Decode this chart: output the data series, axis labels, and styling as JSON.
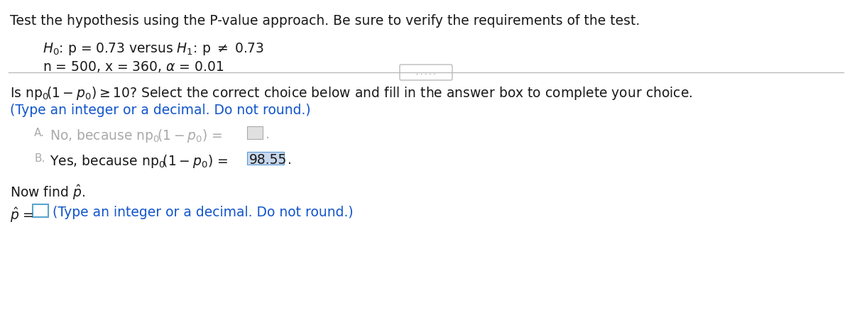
{
  "title_line": "Test the hypothesis using the P-value approach. Be sure to verify the requirements of the test.",
  "h0_text": "$H_0$: p = 0.73 versus $H_1$: p ≠ 0.73",
  "h1_text": "n = 500, x = 360, α = 0.01",
  "question_line": "Is np$_0\\left(1-p_0\\right)\\geq$ 10? Select the correct choice below and fill in the answer box to complete your choice.",
  "instruction_line": "(Type an integer or a decimal. Do not round.)",
  "choice_A_pre": "No, because np$_0\\left(1-p_0\\right)$ = ",
  "choice_B_pre": "Yes, because np$_0\\left(1-p_0\\right)$ = ",
  "choice_B_value": "98.55",
  "now_find": "Now find p̂.",
  "phat_label": "p̂ =",
  "phat_instruction": "(Type an integer or a decimal. Do not round.)",
  "bg_color": "#ffffff",
  "text_color": "#1a1a1a",
  "blue_color": "#1155cc",
  "gray_color": "#aaaaaa",
  "highlight_color": "#c8d8ed",
  "box_border_color": "#5b9bd5",
  "box_A_color": "#dddddd",
  "box_A_border": "#aaaaaa"
}
